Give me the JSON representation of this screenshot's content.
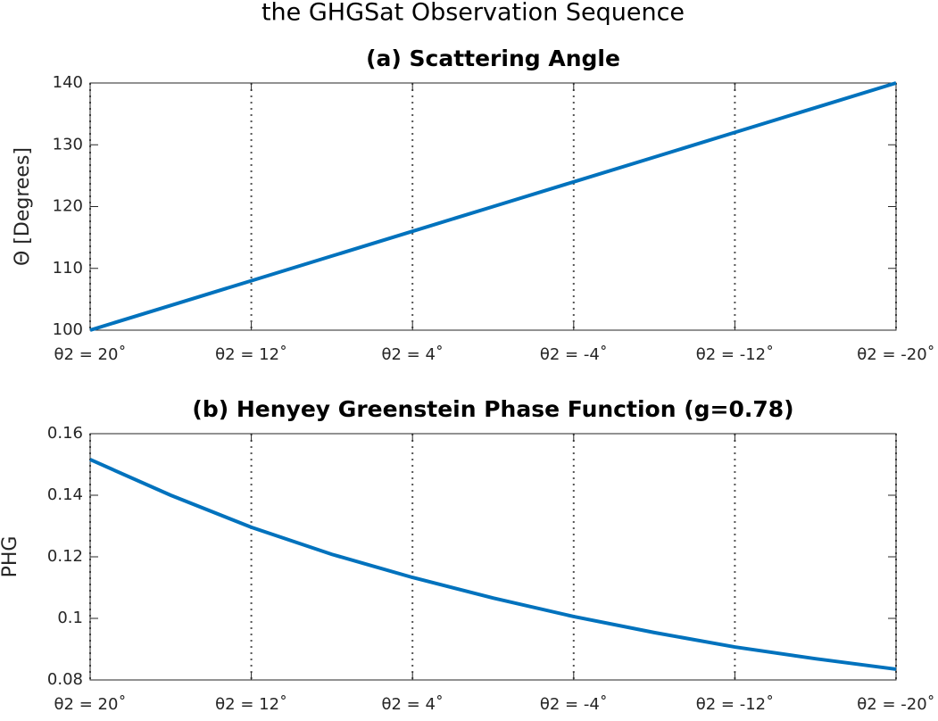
{
  "title": "the GHGSat Observation Sequence",
  "chart_data": [
    {
      "type": "line",
      "title": "(a) Scattering Angle",
      "ylabel": "Θ [Degrees]",
      "x": [
        20,
        16,
        12,
        8,
        4,
        0,
        -4,
        -8,
        -12,
        -16,
        -20
      ],
      "color": "#0072bd",
      "values": [
        100,
        104,
        108,
        112,
        116,
        120,
        124,
        128,
        132,
        136,
        140
      ],
      "xlim": [
        20,
        -20
      ],
      "xticks": [
        {
          "value": 20,
          "label": "θ2 = 20˚"
        },
        {
          "value": 12,
          "label": "θ2 = 12˚"
        },
        {
          "value": 4,
          "label": "θ2 = 4˚"
        },
        {
          "value": -4,
          "label": "θ2 = -4˚"
        },
        {
          "value": -12,
          "label": "θ2 = -12˚"
        },
        {
          "value": -20,
          "label": "θ2 = -20˚"
        }
      ],
      "ylim": [
        100,
        140
      ],
      "yticks": [
        100,
        110,
        120,
        130,
        140
      ],
      "grid": "x"
    },
    {
      "type": "line",
      "title": "(b) Henyey Greenstein Phase Function (g=0.78)",
      "ylabel": "PHG",
      "x": [
        20,
        16,
        12,
        8,
        4,
        0,
        -4,
        -8,
        -12,
        -16,
        -20
      ],
      "color": "#0072bd",
      "values": [
        0.1516,
        0.14,
        0.1296,
        0.1208,
        0.1133,
        0.1066,
        0.1006,
        0.0954,
        0.0907,
        0.0869,
        0.0835
      ],
      "xlim": [
        20,
        -20
      ],
      "xticks": [
        {
          "value": 20,
          "label": "θ2 = 20˚"
        },
        {
          "value": 12,
          "label": "θ2 = 12˚"
        },
        {
          "value": 4,
          "label": "θ2 = 4˚"
        },
        {
          "value": -4,
          "label": "θ2 = -4˚"
        },
        {
          "value": -12,
          "label": "θ2 = -12˚"
        },
        {
          "value": -20,
          "label": "θ2 = -20˚"
        }
      ],
      "ylim": [
        0.08,
        0.16
      ],
      "yticks": [
        0.08,
        0.1,
        0.12,
        0.14,
        0.16
      ],
      "grid": "x"
    }
  ]
}
